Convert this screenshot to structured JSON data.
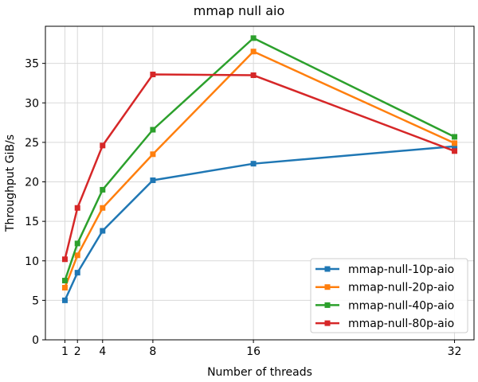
{
  "chart_data": {
    "type": "line",
    "title": "mmap null aio",
    "xlabel": "Number of threads",
    "ylabel": "Throughput GiB/s",
    "x": [
      1,
      2,
      4,
      8,
      16,
      32
    ],
    "xticks": [
      "1",
      "2",
      "4",
      "8",
      "16",
      "32"
    ],
    "yticks": [
      "0",
      "5",
      "10",
      "15",
      "20",
      "25",
      "30",
      "35"
    ],
    "xlim": [
      -0.55,
      33.55
    ],
    "ylim": [
      0,
      39.7
    ],
    "grid": true,
    "legend_position": "lower right",
    "series": [
      {
        "name": "mmap-null-10p-aio",
        "color": "#1f77b4",
        "values": [
          5.0,
          8.5,
          13.8,
          20.2,
          22.3,
          24.5
        ]
      },
      {
        "name": "mmap-null-20p-aio",
        "color": "#ff7f0e",
        "values": [
          6.6,
          10.7,
          16.7,
          23.5,
          36.5,
          24.9
        ]
      },
      {
        "name": "mmap-null-40p-aio",
        "color": "#2ca02c",
        "values": [
          7.5,
          12.2,
          19.0,
          26.6,
          38.2,
          25.7
        ]
      },
      {
        "name": "mmap-null-80p-aio",
        "color": "#d62728",
        "values": [
          10.2,
          16.7,
          24.6,
          33.6,
          33.5,
          23.9
        ]
      }
    ]
  }
}
